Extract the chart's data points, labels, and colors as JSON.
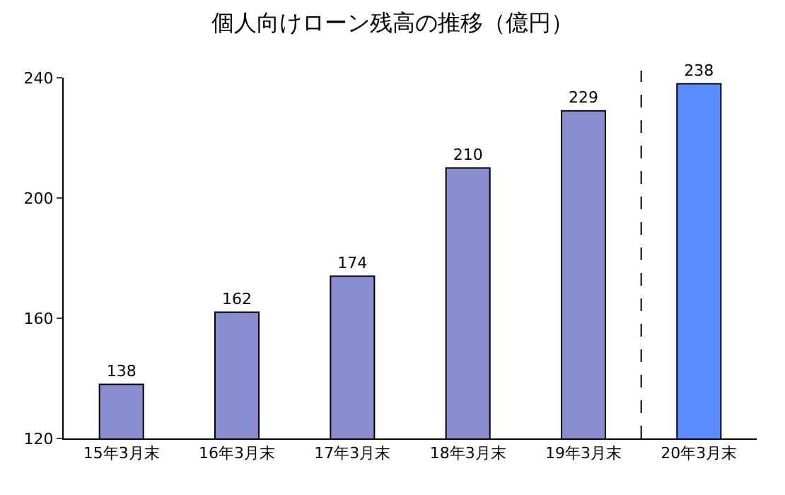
{
  "chart_data": {
    "type": "bar",
    "title": "個人向けローン残高の推移（億円）",
    "categories": [
      "15年3月末",
      "16年3月末",
      "17年3月末",
      "18年3月末",
      "19年3月末",
      "20年3月末"
    ],
    "values": [
      138,
      162,
      174,
      210,
      229,
      238
    ],
    "colors": [
      "#8a8cd0",
      "#8a8cd0",
      "#8a8cd0",
      "#8a8cd0",
      "#8a8cd0",
      "#5b8cff"
    ],
    "ylim": [
      120,
      240
    ],
    "yticks": [
      120,
      160,
      200,
      240
    ],
    "data_labels": true
  }
}
